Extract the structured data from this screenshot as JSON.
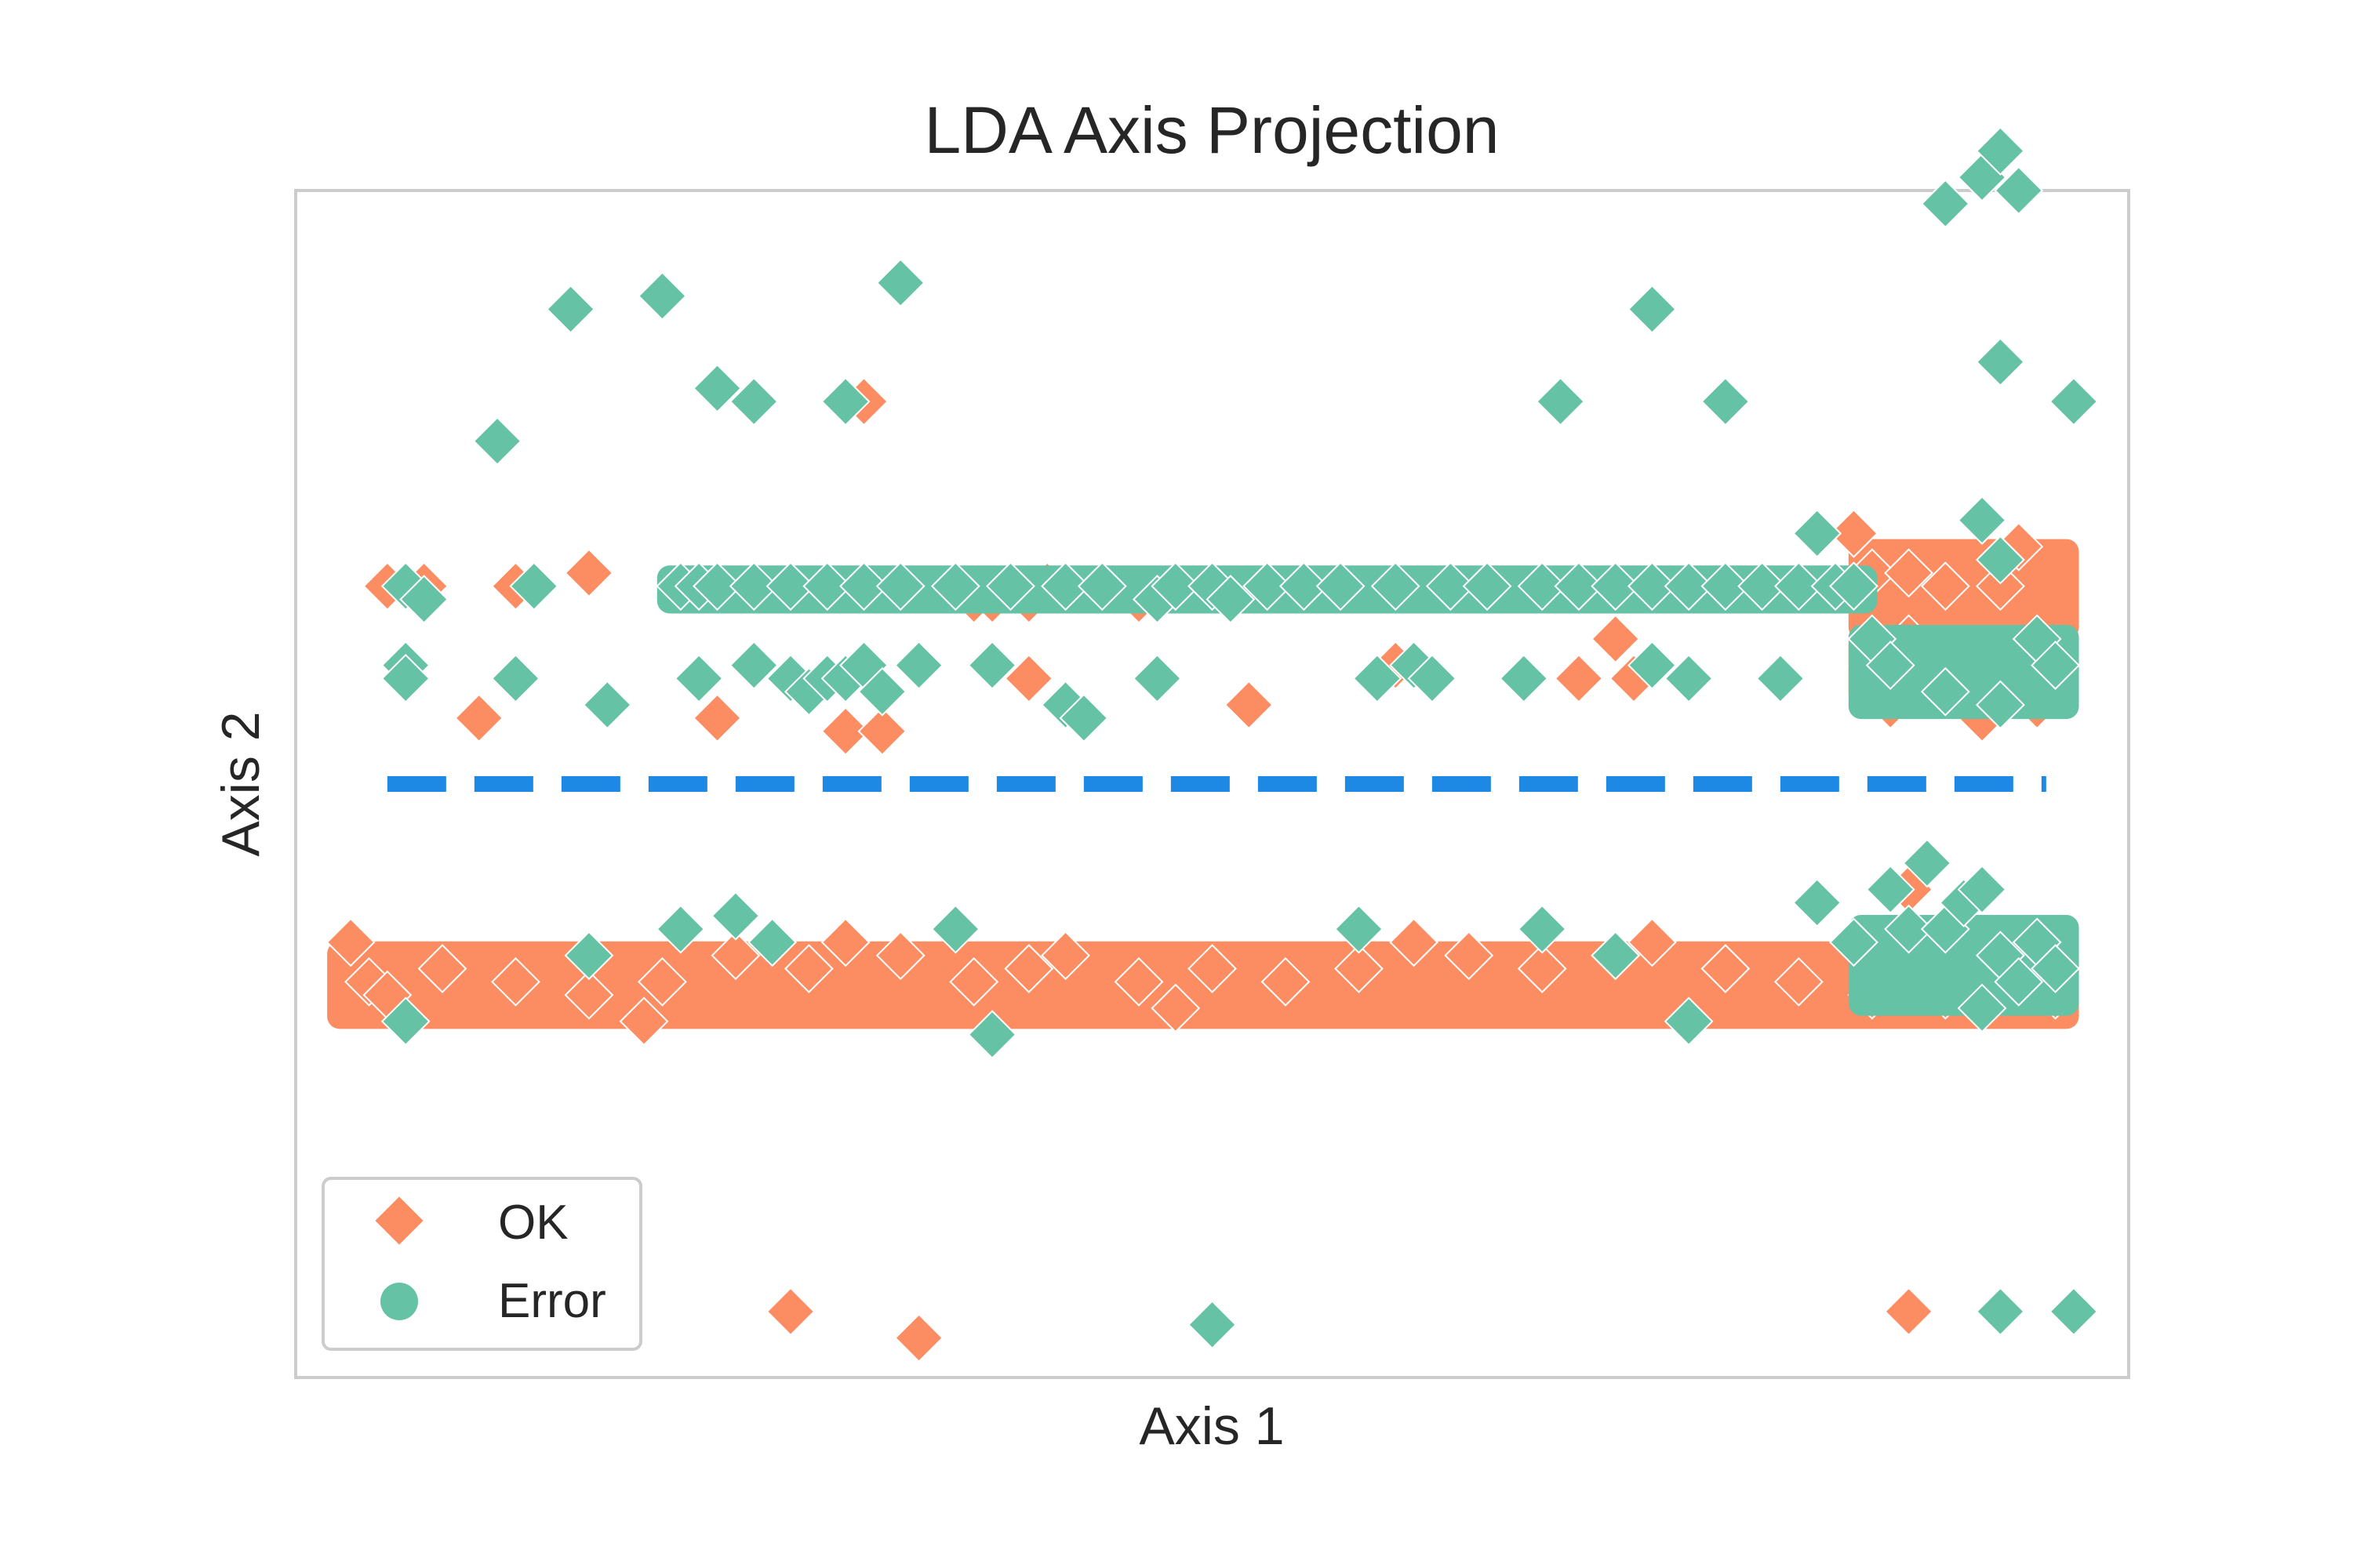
{
  "chart_data": {
    "type": "scatter",
    "title": "LDA Axis Projection",
    "xlabel": "Axis 1",
    "ylabel": "Axis 2",
    "xlim": [
      0,
      100
    ],
    "ylim": [
      -4.5,
      4.5
    ],
    "grid": false,
    "legend_position": "lower-left",
    "threshold": {
      "y": 0,
      "color": "#1e88e5",
      "style": "dashed"
    },
    "series": [
      {
        "name": "OK",
        "color": "#fc8d62",
        "marker": "diamond",
        "points": [
          [
            5,
            1.5
          ],
          [
            7,
            1.5
          ],
          [
            12,
            1.5
          ],
          [
            16,
            1.6
          ],
          [
            10,
            0.5
          ],
          [
            23,
            0.5
          ],
          [
            30,
            0.4
          ],
          [
            32,
            0.4
          ],
          [
            37,
            1.4
          ],
          [
            38,
            1.4
          ],
          [
            40,
            1.4
          ],
          [
            41,
            1.5
          ],
          [
            44,
            1.5
          ],
          [
            46,
            1.4
          ],
          [
            38,
            0.9
          ],
          [
            40,
            0.8
          ],
          [
            52,
            0.6
          ],
          [
            31,
            2.9
          ],
          [
            60,
            0.9
          ],
          [
            70,
            0.8
          ],
          [
            72,
            1.1
          ],
          [
            73,
            0.8
          ],
          [
            85,
            1.9
          ],
          [
            86,
            1.6
          ],
          [
            88,
            1.6
          ],
          [
            90,
            1.5
          ],
          [
            93,
            1.5
          ],
          [
            94,
            1.8
          ],
          [
            88,
            1.1
          ],
          [
            91,
            1.0
          ],
          [
            94,
            0.9
          ],
          [
            86,
            0.9
          ],
          [
            92,
            0.5
          ],
          [
            95,
            0.6
          ],
          [
            87,
            0.6
          ],
          [
            3,
            -1.2
          ],
          [
            4,
            -1.5
          ],
          [
            5,
            -1.6
          ],
          [
            8,
            -1.4
          ],
          [
            12,
            -1.5
          ],
          [
            16,
            -1.6
          ],
          [
            20,
            -1.5
          ],
          [
            24,
            -1.3
          ],
          [
            28,
            -1.4
          ],
          [
            30,
            -1.2
          ],
          [
            33,
            -1.3
          ],
          [
            37,
            -1.5
          ],
          [
            40,
            -1.4
          ],
          [
            42,
            -1.3
          ],
          [
            46,
            -1.5
          ],
          [
            50,
            -1.4
          ],
          [
            54,
            -1.5
          ],
          [
            58,
            -1.4
          ],
          [
            61,
            -1.2
          ],
          [
            64,
            -1.3
          ],
          [
            68,
            -1.4
          ],
          [
            72,
            -1.3
          ],
          [
            74,
            -1.2
          ],
          [
            78,
            -1.4
          ],
          [
            82,
            -1.5
          ],
          [
            85,
            -1.2
          ],
          [
            86,
            -1.6
          ],
          [
            88,
            -1.5
          ],
          [
            90,
            -1.6
          ],
          [
            92,
            -1.5
          ],
          [
            94,
            -1.3
          ],
          [
            95,
            -1.4
          ],
          [
            96,
            -1.6
          ],
          [
            96,
            -1.5
          ],
          [
            88,
            -0.8
          ],
          [
            19,
            -1.8
          ],
          [
            48,
            -1.7
          ],
          [
            27,
            -4.0
          ],
          [
            34,
            -4.2
          ],
          [
            88,
            -4.0
          ]
        ],
        "bands": [
          {
            "x_from": 3,
            "x_to": 96,
            "y_from": -1.75,
            "y_to": -1.3
          },
          {
            "x_from": 86,
            "x_to": 96,
            "y_from": 1.2,
            "y_to": 1.75
          },
          {
            "x_from": 86,
            "x_to": 96,
            "y_from": 0.7,
            "y_to": 1.05
          }
        ]
      },
      {
        "name": "Error",
        "color": "#66c2a5",
        "marker": "diamond",
        "points": [
          [
            6,
            1.5
          ],
          [
            7,
            1.4
          ],
          [
            13,
            1.5
          ],
          [
            21,
            1.5
          ],
          [
            22,
            1.5
          ],
          [
            23,
            1.5
          ],
          [
            25,
            1.5
          ],
          [
            27,
            1.5
          ],
          [
            29,
            1.5
          ],
          [
            31,
            1.5
          ],
          [
            33,
            1.5
          ],
          [
            36,
            1.5
          ],
          [
            39,
            1.5
          ],
          [
            42,
            1.5
          ],
          [
            44,
            1.5
          ],
          [
            47,
            1.4
          ],
          [
            48,
            1.5
          ],
          [
            50,
            1.5
          ],
          [
            51,
            1.4
          ],
          [
            53,
            1.5
          ],
          [
            55,
            1.5
          ],
          [
            57,
            1.5
          ],
          [
            60,
            1.5
          ],
          [
            63,
            1.5
          ],
          [
            65,
            1.5
          ],
          [
            68,
            1.5
          ],
          [
            70,
            1.5
          ],
          [
            72,
            1.5
          ],
          [
            74,
            1.5
          ],
          [
            76,
            1.5
          ],
          [
            78,
            1.5
          ],
          [
            80,
            1.5
          ],
          [
            82,
            1.5
          ],
          [
            84,
            1.5
          ],
          [
            85,
            1.5
          ],
          [
            6,
            0.9
          ],
          [
            6,
            0.8
          ],
          [
            12,
            0.8
          ],
          [
            17,
            0.6
          ],
          [
            22,
            0.8
          ],
          [
            25,
            0.9
          ],
          [
            27,
            0.8
          ],
          [
            28,
            0.7
          ],
          [
            29,
            0.8
          ],
          [
            30,
            0.8
          ],
          [
            31,
            0.9
          ],
          [
            32,
            0.7
          ],
          [
            34,
            0.9
          ],
          [
            38,
            0.9
          ],
          [
            42,
            0.6
          ],
          [
            43,
            0.5
          ],
          [
            47,
            0.8
          ],
          [
            59,
            0.8
          ],
          [
            61,
            0.9
          ],
          [
            62,
            0.8
          ],
          [
            67,
            0.8
          ],
          [
            74,
            0.9
          ],
          [
            76,
            0.8
          ],
          [
            81,
            0.8
          ],
          [
            83,
            1.9
          ],
          [
            86,
            1.1
          ],
          [
            87,
            0.9
          ],
          [
            90,
            0.7
          ],
          [
            93,
            0.6
          ],
          [
            95,
            1.1
          ],
          [
            96,
            0.9
          ],
          [
            92,
            2.0
          ],
          [
            93,
            1.7
          ],
          [
            15,
            3.6
          ],
          [
            20,
            3.7
          ],
          [
            23,
            3.0
          ],
          [
            33,
            3.8
          ],
          [
            30,
            2.9
          ],
          [
            11,
            2.6
          ],
          [
            25,
            2.9
          ],
          [
            69,
            2.9
          ],
          [
            74,
            3.6
          ],
          [
            78,
            2.9
          ],
          [
            90,
            4.4
          ],
          [
            92,
            4.6
          ],
          [
            93,
            4.8
          ],
          [
            94,
            4.5
          ],
          [
            93,
            3.2
          ],
          [
            97,
            2.9
          ],
          [
            6,
            -1.8
          ],
          [
            16,
            -1.3
          ],
          [
            21,
            -1.1
          ],
          [
            24,
            -1.0
          ],
          [
            26,
            -1.2
          ],
          [
            36,
            -1.1
          ],
          [
            38,
            -1.9
          ],
          [
            58,
            -1.1
          ],
          [
            68,
            -1.1
          ],
          [
            72,
            -1.3
          ],
          [
            76,
            -1.8
          ],
          [
            83,
            -0.9
          ],
          [
            85,
            -1.2
          ],
          [
            87,
            -0.8
          ],
          [
            88,
            -1.1
          ],
          [
            89,
            -0.6
          ],
          [
            90,
            -1.1
          ],
          [
            91,
            -0.9
          ],
          [
            92,
            -0.8
          ],
          [
            93,
            -1.3
          ],
          [
            94,
            -1.5
          ],
          [
            95,
            -1.2
          ],
          [
            96,
            -1.4
          ],
          [
            92,
            -1.7
          ],
          [
            50,
            -4.1
          ],
          [
            93,
            -4.0
          ],
          [
            97,
            -4.0
          ]
        ],
        "bands": [
          {
            "x_from": 21,
            "x_to": 85,
            "y_from": 1.4,
            "y_to": 1.55
          },
          {
            "x_from": 86,
            "x_to": 96,
            "y_from": 0.6,
            "y_to": 1.1
          },
          {
            "x_from": 86,
            "x_to": 96,
            "y_from": -1.65,
            "y_to": -1.1
          }
        ]
      }
    ]
  }
}
